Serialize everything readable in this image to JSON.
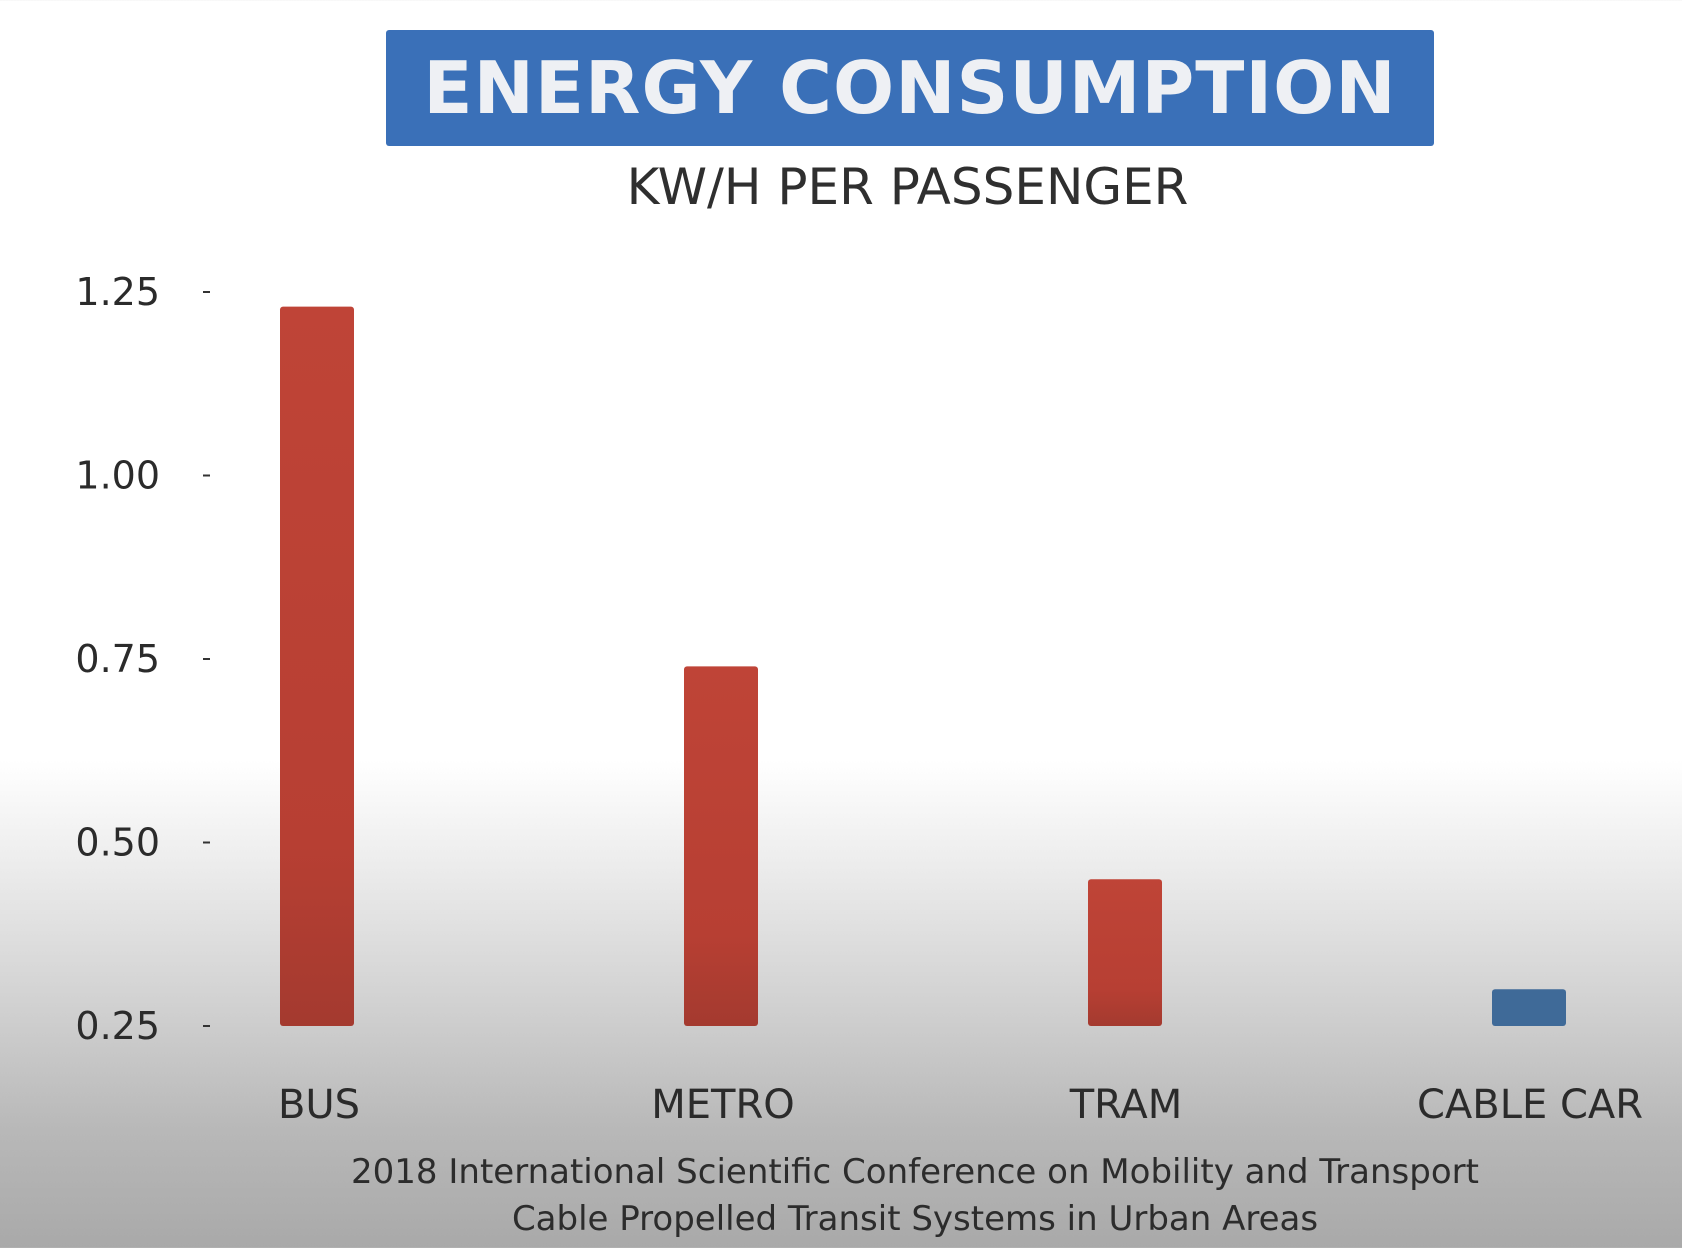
{
  "chart_data": {
    "type": "bar",
    "title": "ENERGY CONSUMPTION",
    "subtitle": "KW/H PER PASSENGER",
    "categories": [
      "BUS",
      "METRO",
      "TRAM",
      "CABLE CAR"
    ],
    "values": [
      1.23,
      0.74,
      0.45,
      0.3
    ],
    "bar_colors": [
      "#bb4235",
      "#bb4235",
      "#bb4235",
      "#3f6a98"
    ],
    "yticks": [
      "1.25",
      "1.00",
      "0.75",
      "0.50",
      "0.25"
    ],
    "ylim": [
      0.25,
      1.25
    ],
    "grid": false,
    "legend": "none"
  },
  "citation": {
    "line1": "2018 International Scientific Conference on Mobility and Transport",
    "line2": "Cable Propelled Transit Systems in Urban Areas"
  },
  "colors": {
    "title_bg": "#3a70b8",
    "bar_red": "#bb4235",
    "bar_blue": "#3f6a98"
  }
}
